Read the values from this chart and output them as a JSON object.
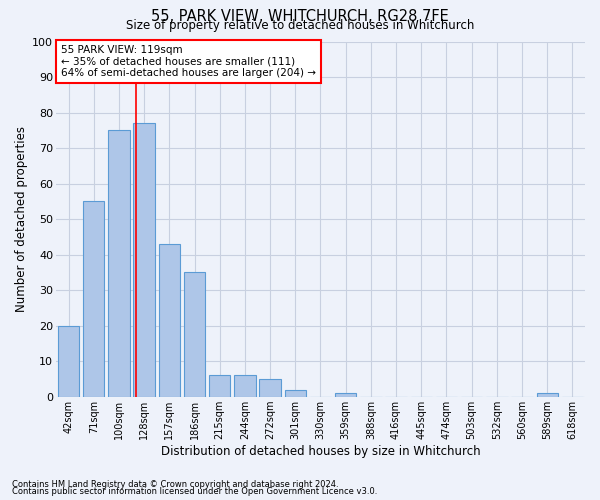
{
  "title": "55, PARK VIEW, WHITCHURCH, RG28 7FE",
  "subtitle": "Size of property relative to detached houses in Whitchurch",
  "xlabel": "Distribution of detached houses by size in Whitchurch",
  "ylabel": "Number of detached properties",
  "bin_labels": [
    "42sqm",
    "71sqm",
    "100sqm",
    "128sqm",
    "157sqm",
    "186sqm",
    "215sqm",
    "244sqm",
    "272sqm",
    "301sqm",
    "330sqm",
    "359sqm",
    "388sqm",
    "416sqm",
    "445sqm",
    "474sqm",
    "503sqm",
    "532sqm",
    "560sqm",
    "589sqm",
    "618sqm"
  ],
  "bar_heights": [
    20,
    55,
    75,
    77,
    43,
    35,
    6,
    6,
    5,
    2,
    0,
    1,
    0,
    0,
    0,
    0,
    0,
    0,
    0,
    1,
    0
  ],
  "bar_color": "#aec6e8",
  "bar_edge_color": "#5b9bd5",
  "bar_edge_width": 0.8,
  "annotation_box_text": "55 PARK VIEW: 119sqm\n← 35% of detached houses are smaller (111)\n64% of semi-detached houses are larger (204) →",
  "footnote1": "Contains HM Land Registry data © Crown copyright and database right 2024.",
  "footnote2": "Contains public sector information licensed under the Open Government Licence v3.0.",
  "ylim": [
    0,
    100
  ],
  "yticks": [
    0,
    10,
    20,
    30,
    40,
    50,
    60,
    70,
    80,
    90,
    100
  ],
  "grid_color": "#c8d0e0",
  "background_color": "#eef2fa"
}
